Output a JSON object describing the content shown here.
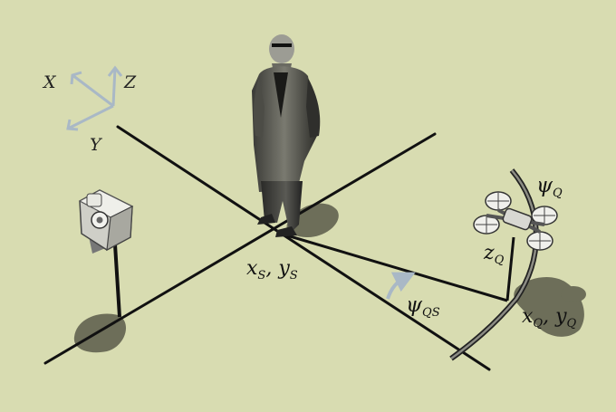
{
  "axes_legend": {
    "x": "X",
    "y": "Y",
    "z": "Z"
  },
  "labels": {
    "subject_position": {
      "base1": "x",
      "sub1": "S",
      "sep": ", ",
      "base2": "y",
      "sub2": "S"
    },
    "relative_heading": {
      "base": "ψ",
      "sub": "QS"
    },
    "drone_heading": {
      "base": "ψ",
      "sub": "Q"
    },
    "drone_altitude": {
      "base": "z",
      "sub": "Q"
    },
    "drone_position": {
      "base1": "x",
      "sub1": "Q",
      "sep": ", ",
      "base2": "y",
      "sub2": "Q"
    }
  },
  "colors": {
    "background": "#d8dcb1",
    "line": "#111111",
    "arrow": "#a9b8c6",
    "shadow": "#4a4a3c"
  }
}
